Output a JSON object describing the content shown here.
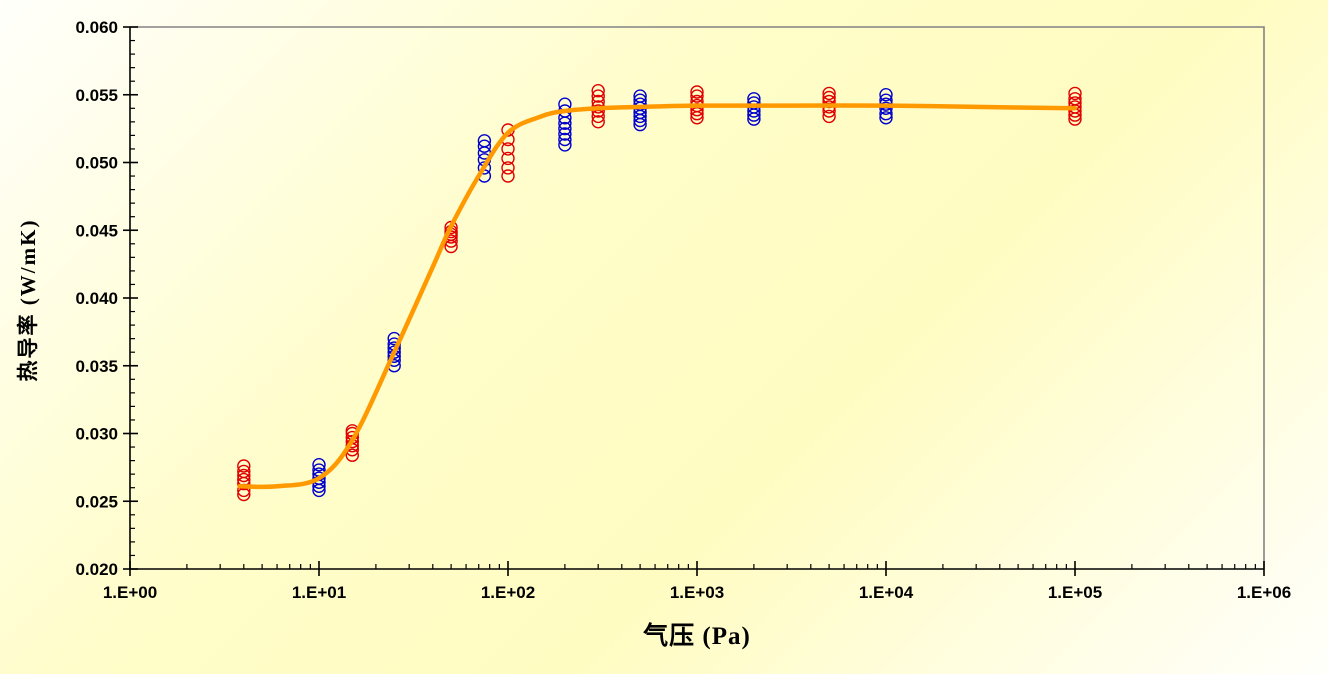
{
  "chart": {
    "colors": {
      "background_corner": "#FFFFFB",
      "background_center": "#FFFCC5",
      "plot_border": "#848284",
      "axis": "#000000",
      "red_series": "#E00000",
      "blue_series": "#0000CD",
      "fit_curve": "#FF9900"
    }
  },
  "chart_data": {
    "type": "scatter",
    "title": "",
    "xlabel": "气压 (Pa)",
    "ylabel": "热导率 (W/mK)",
    "x_scale": "log10",
    "xlim": [
      1,
      1000000
    ],
    "ylim": [
      0.02,
      0.06
    ],
    "grid": false,
    "legend": "none",
    "x_ticks": [
      {
        "v": 1,
        "label": "1.E+00"
      },
      {
        "v": 10,
        "label": "1.E+01"
      },
      {
        "v": 100,
        "label": "1.E+02"
      },
      {
        "v": 1000,
        "label": "1.E+03"
      },
      {
        "v": 10000,
        "label": "1.E+04"
      },
      {
        "v": 100000,
        "label": "1.E+05"
      },
      {
        "v": 1000000,
        "label": "1.E+06"
      }
    ],
    "x_minor_ticks": "log-decade-2-to-9",
    "y_ticks": [
      {
        "v": 0.02,
        "label": "0.020"
      },
      {
        "v": 0.025,
        "label": "0.025"
      },
      {
        "v": 0.03,
        "label": "0.030"
      },
      {
        "v": 0.035,
        "label": "0.035"
      },
      {
        "v": 0.04,
        "label": "0.040"
      },
      {
        "v": 0.045,
        "label": "0.045"
      },
      {
        "v": 0.05,
        "label": "0.050"
      },
      {
        "v": 0.055,
        "label": "0.055"
      },
      {
        "v": 0.06,
        "label": "0.060"
      }
    ],
    "y_minor_step": 0.001,
    "series": [
      {
        "name": "red-samples",
        "color": "#E00000",
        "marker": "open-circle",
        "marker_radius": 6,
        "points": [
          [
            4,
            0.0255
          ],
          [
            4,
            0.0258
          ],
          [
            4,
            0.0263
          ],
          [
            4,
            0.0266
          ],
          [
            4,
            0.0269
          ],
          [
            4,
            0.0272
          ],
          [
            4,
            0.0276
          ],
          [
            15,
            0.0284
          ],
          [
            15,
            0.0288
          ],
          [
            15,
            0.0291
          ],
          [
            15,
            0.0294
          ],
          [
            15,
            0.0297
          ],
          [
            15,
            0.03
          ],
          [
            15,
            0.0302
          ],
          [
            50,
            0.0438
          ],
          [
            50,
            0.0442
          ],
          [
            50,
            0.0445
          ],
          [
            50,
            0.0447
          ],
          [
            50,
            0.0449
          ],
          [
            50,
            0.0452
          ],
          [
            100,
            0.049
          ],
          [
            100,
            0.0496
          ],
          [
            100,
            0.0503
          ],
          [
            100,
            0.051
          ],
          [
            100,
            0.0517
          ],
          [
            100,
            0.0524
          ],
          [
            300,
            0.053
          ],
          [
            300,
            0.0534
          ],
          [
            300,
            0.0538
          ],
          [
            300,
            0.0541
          ],
          [
            300,
            0.0545
          ],
          [
            300,
            0.0549
          ],
          [
            300,
            0.0553
          ],
          [
            1000,
            0.0533
          ],
          [
            1000,
            0.0536
          ],
          [
            1000,
            0.0539
          ],
          [
            1000,
            0.0542
          ],
          [
            1000,
            0.0545
          ],
          [
            1000,
            0.0549
          ],
          [
            1000,
            0.0552
          ],
          [
            5000,
            0.0534
          ],
          [
            5000,
            0.0538
          ],
          [
            5000,
            0.0541
          ],
          [
            5000,
            0.0545
          ],
          [
            5000,
            0.0548
          ],
          [
            5000,
            0.0551
          ],
          [
            100000,
            0.0532
          ],
          [
            100000,
            0.0535
          ],
          [
            100000,
            0.0538
          ],
          [
            100000,
            0.0541
          ],
          [
            100000,
            0.0544
          ],
          [
            100000,
            0.0547
          ],
          [
            100000,
            0.0551
          ]
        ]
      },
      {
        "name": "blue-samples",
        "color": "#0000CD",
        "marker": "open-circle",
        "marker_radius": 6,
        "points": [
          [
            10,
            0.0258
          ],
          [
            10,
            0.0261
          ],
          [
            10,
            0.0264
          ],
          [
            10,
            0.0267
          ],
          [
            10,
            0.027
          ],
          [
            10,
            0.0273
          ],
          [
            10,
            0.0277
          ],
          [
            25,
            0.035
          ],
          [
            25,
            0.0354
          ],
          [
            25,
            0.0357
          ],
          [
            25,
            0.036
          ],
          [
            25,
            0.0363
          ],
          [
            25,
            0.0366
          ],
          [
            25,
            0.037
          ],
          [
            75,
            0.049
          ],
          [
            75,
            0.0496
          ],
          [
            75,
            0.0502
          ],
          [
            75,
            0.0507
          ],
          [
            75,
            0.0512
          ],
          [
            75,
            0.0516
          ],
          [
            200,
            0.0513
          ],
          [
            200,
            0.0517
          ],
          [
            200,
            0.0521
          ],
          [
            200,
            0.0525
          ],
          [
            200,
            0.0529
          ],
          [
            200,
            0.0533
          ],
          [
            200,
            0.0538
          ],
          [
            200,
            0.0543
          ],
          [
            500,
            0.0528
          ],
          [
            500,
            0.0531
          ],
          [
            500,
            0.0534
          ],
          [
            500,
            0.0537
          ],
          [
            500,
            0.054
          ],
          [
            500,
            0.0543
          ],
          [
            500,
            0.0546
          ],
          [
            500,
            0.0549
          ],
          [
            2000,
            0.0532
          ],
          [
            2000,
            0.0535
          ],
          [
            2000,
            0.0538
          ],
          [
            2000,
            0.0541
          ],
          [
            2000,
            0.0544
          ],
          [
            2000,
            0.0547
          ],
          [
            10000,
            0.0533
          ],
          [
            10000,
            0.0536
          ],
          [
            10000,
            0.054
          ],
          [
            10000,
            0.0543
          ],
          [
            10000,
            0.0546
          ],
          [
            10000,
            0.055
          ]
        ]
      }
    ],
    "fit_curve": {
      "name": "fit-curve",
      "color": "#FF9900",
      "stroke_width": 4.5,
      "points": [
        [
          3.8,
          0.0261
        ],
        [
          6,
          0.0261
        ],
        [
          10,
          0.0267
        ],
        [
          15,
          0.0295
        ],
        [
          25,
          0.036
        ],
        [
          40,
          0.0423
        ],
        [
          50,
          0.0453
        ],
        [
          70,
          0.049
        ],
        [
          100,
          0.0522
        ],
        [
          150,
          0.0534
        ],
        [
          200,
          0.0538
        ],
        [
          300,
          0.054
        ],
        [
          500,
          0.0541
        ],
        [
          1000,
          0.0542
        ],
        [
          3000,
          0.0542
        ],
        [
          10000,
          0.0542
        ],
        [
          30000,
          0.0541
        ],
        [
          100000,
          0.054
        ]
      ]
    }
  }
}
